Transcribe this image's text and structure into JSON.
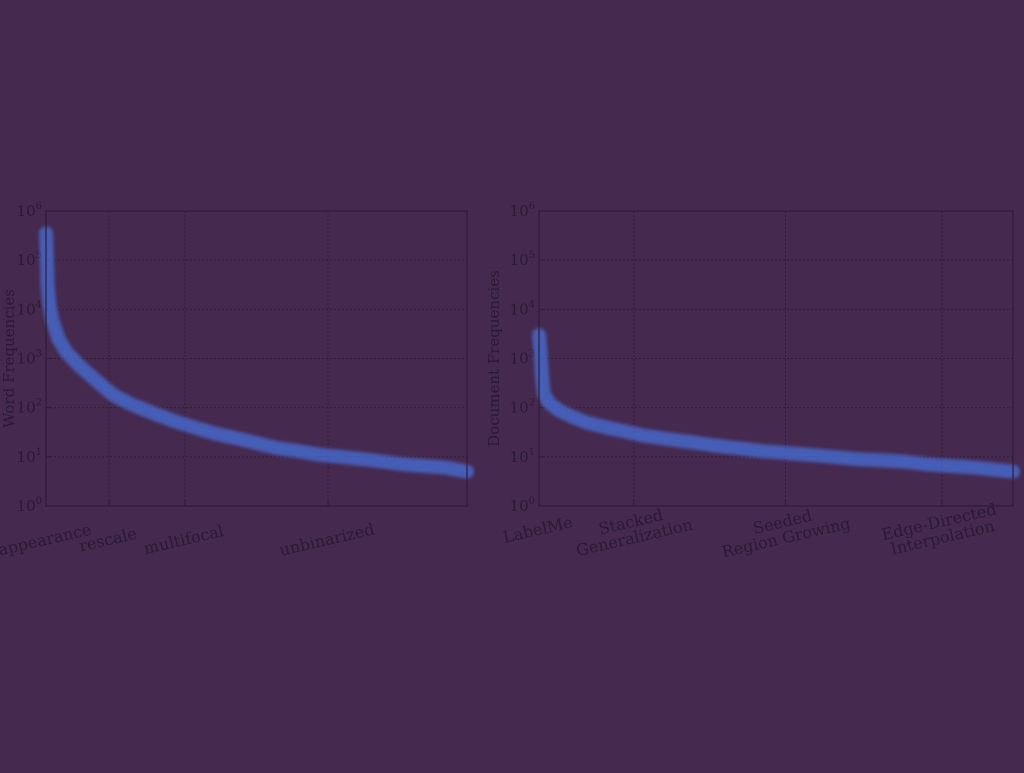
{
  "colors": {
    "background": "#45294f",
    "series": "#4a7df2",
    "axis": "#2f1c38",
    "text": "#2b1a34"
  },
  "chart_data": [
    {
      "type": "line",
      "title": "",
      "xlabel": "",
      "ylabel": "Word Frequencies",
      "yscale": "log",
      "ylim": [
        1,
        1000000
      ],
      "xlim": [
        0,
        100
      ],
      "grid": true,
      "y_ticks": [
        {
          "base": "10",
          "exp": "0",
          "value": 1
        },
        {
          "base": "10",
          "exp": "1",
          "value": 10
        },
        {
          "base": "10",
          "exp": "2",
          "value": 100
        },
        {
          "base": "10",
          "exp": "3",
          "value": 1000
        },
        {
          "base": "10",
          "exp": "4",
          "value": 10000
        },
        {
          "base": "10",
          "exp": "5",
          "value": 100000
        },
        {
          "base": "10",
          "exp": "6",
          "value": 1000000
        }
      ],
      "x_ticks": [
        {
          "x": 0,
          "lines": [
            "appearance"
          ]
        },
        {
          "x": 15,
          "lines": [
            "rescale"
          ]
        },
        {
          "x": 33,
          "lines": [
            "multifocal"
          ]
        },
        {
          "x": 67,
          "lines": [
            "unbinarized"
          ]
        }
      ],
      "series": [
        {
          "x": [
            0,
            0.4,
            0.8,
            1.5,
            3,
            5,
            8,
            12,
            16,
            20,
            25,
            30,
            35,
            40,
            45,
            50,
            55,
            60,
            65,
            70,
            75,
            80,
            85,
            90,
            95,
            100
          ],
          "y": [
            350000,
            30000,
            12000,
            6000,
            2500,
            1300,
            700,
            350,
            180,
            120,
            80,
            55,
            40,
            30,
            24,
            19,
            15,
            13,
            11,
            10,
            9,
            8,
            7,
            6.5,
            6,
            5
          ]
        }
      ]
    },
    {
      "type": "line",
      "title": "",
      "xlabel": "",
      "ylabel": "Document Frequencies",
      "yscale": "log",
      "ylim": [
        1,
        1000000
      ],
      "xlim": [
        0,
        100
      ],
      "grid": true,
      "y_ticks": [
        {
          "base": "10",
          "exp": "0",
          "value": 1
        },
        {
          "base": "10",
          "exp": "1",
          "value": 10
        },
        {
          "base": "10",
          "exp": "2",
          "value": 100
        },
        {
          "base": "10",
          "exp": "3",
          "value": 1000
        },
        {
          "base": "10",
          "exp": "4",
          "value": 10000
        },
        {
          "base": "10",
          "exp": "5",
          "value": 100000
        },
        {
          "base": "10",
          "exp": "6",
          "value": 1000000
        }
      ],
      "x_ticks": [
        {
          "x": 0,
          "lines": [
            "LabelMe"
          ]
        },
        {
          "x": 20,
          "lines": [
            "Stacked",
            "Generalization"
          ]
        },
        {
          "x": 52,
          "lines": [
            "Seeded",
            "Region Growing"
          ]
        },
        {
          "x": 85,
          "lines": [
            "Edge-Directed",
            "Interpolation"
          ]
        }
      ],
      "series": [
        {
          "x": [
            0,
            0.3,
            0.6,
            1,
            2,
            4,
            7,
            10,
            14,
            18,
            22,
            27,
            32,
            37,
            42,
            47,
            52,
            57,
            62,
            67,
            72,
            77,
            82,
            87,
            92,
            96,
            100
          ],
          "y": [
            3000,
            1500,
            500,
            200,
            130,
            90,
            65,
            50,
            40,
            33,
            27,
            23,
            20,
            17,
            15,
            13,
            12,
            11,
            10,
            9,
            8.5,
            8,
            7,
            6.5,
            6,
            5.5,
            5
          ]
        }
      ]
    }
  ]
}
